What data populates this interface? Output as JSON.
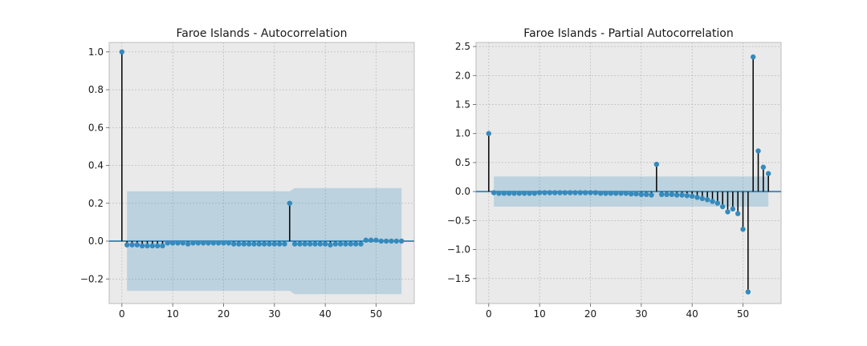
{
  "chart_data": [
    {
      "type": "stem",
      "title": "Faroe Islands - Autocorrelation",
      "xlabel": "",
      "ylabel": "",
      "xlim": [
        -2.5,
        57.5
      ],
      "ylim": [
        -0.33,
        1.05
      ],
      "xticks": [
        0,
        10,
        20,
        30,
        40,
        50
      ],
      "xtick_labels": [
        "0",
        "10",
        "20",
        "30",
        "40",
        "50"
      ],
      "yticks": [
        -0.2,
        0.0,
        0.2,
        0.4,
        0.6,
        0.8,
        1.0
      ],
      "ytick_labels": [
        "−0.2",
        "0.0",
        "0.2",
        "0.4",
        "0.6",
        "0.8",
        "1.0"
      ],
      "grid": true,
      "lags": [
        0,
        1,
        2,
        3,
        4,
        5,
        6,
        7,
        8,
        9,
        10,
        11,
        12,
        13,
        14,
        15,
        16,
        17,
        18,
        19,
        20,
        21,
        22,
        23,
        24,
        25,
        26,
        27,
        28,
        29,
        30,
        31,
        32,
        33,
        34,
        35,
        36,
        37,
        38,
        39,
        40,
        41,
        42,
        43,
        44,
        45,
        46,
        47,
        48,
        49,
        50,
        51,
        52,
        53,
        54,
        55
      ],
      "values": [
        1.0,
        -0.02,
        -0.02,
        -0.02,
        -0.025,
        -0.025,
        -0.025,
        -0.025,
        -0.025,
        -0.01,
        -0.01,
        -0.01,
        -0.01,
        -0.015,
        -0.01,
        -0.01,
        -0.01,
        -0.01,
        -0.01,
        -0.01,
        -0.01,
        -0.01,
        -0.015,
        -0.015,
        -0.015,
        -0.015,
        -0.015,
        -0.015,
        -0.015,
        -0.015,
        -0.015,
        -0.015,
        -0.015,
        0.2,
        -0.015,
        -0.015,
        -0.015,
        -0.015,
        -0.015,
        -0.015,
        -0.015,
        -0.02,
        -0.015,
        -0.015,
        -0.015,
        -0.015,
        -0.015,
        -0.015,
        0.005,
        0.005,
        0.005,
        0.0,
        0.0,
        0.0,
        0.0,
        0.0
      ],
      "confidence_band": {
        "lags": [
          1,
          33,
          34,
          55
        ],
        "upper": [
          0.263,
          0.263,
          0.28,
          0.28
        ],
        "lower": [
          -0.263,
          -0.263,
          -0.28,
          -0.28
        ]
      },
      "colors": {
        "marker": "#348abd",
        "stem": "#000000",
        "baseline": "#348abd",
        "band": "#348abd",
        "background": "#eaeaea"
      }
    },
    {
      "type": "stem",
      "title": "Faroe Islands - Partial Autocorrelation",
      "xlabel": "",
      "ylabel": "",
      "xlim": [
        -2.5,
        57.5
      ],
      "ylim": [
        -1.93,
        2.57
      ],
      "xticks": [
        0,
        10,
        20,
        30,
        40,
        50
      ],
      "xtick_labels": [
        "0",
        "10",
        "20",
        "30",
        "40",
        "50"
      ],
      "yticks": [
        -1.5,
        -1.0,
        -0.5,
        0.0,
        0.5,
        1.0,
        1.5,
        2.0,
        2.5
      ],
      "ytick_labels": [
        "−1.5",
        "−1.0",
        "−0.5",
        "0.0",
        "0.5",
        "1.0",
        "1.5",
        "2.0",
        "2.5"
      ],
      "grid": true,
      "lags": [
        0,
        1,
        2,
        3,
        4,
        5,
        6,
        7,
        8,
        9,
        10,
        11,
        12,
        13,
        14,
        15,
        16,
        17,
        18,
        19,
        20,
        21,
        22,
        23,
        24,
        25,
        26,
        27,
        28,
        29,
        30,
        31,
        32,
        33,
        34,
        35,
        36,
        37,
        38,
        39,
        40,
        41,
        42,
        43,
        44,
        45,
        46,
        47,
        48,
        49,
        50,
        51,
        52,
        53,
        54,
        55
      ],
      "values": [
        1.0,
        -0.02,
        -0.03,
        -0.03,
        -0.03,
        -0.03,
        -0.03,
        -0.03,
        -0.03,
        -0.03,
        -0.02,
        -0.02,
        -0.02,
        -0.02,
        -0.02,
        -0.02,
        -0.02,
        -0.02,
        -0.02,
        -0.02,
        -0.02,
        -0.02,
        -0.03,
        -0.03,
        -0.03,
        -0.03,
        -0.03,
        -0.03,
        -0.04,
        -0.04,
        -0.05,
        -0.05,
        -0.06,
        0.47,
        -0.05,
        -0.05,
        -0.05,
        -0.06,
        -0.06,
        -0.07,
        -0.08,
        -0.1,
        -0.12,
        -0.14,
        -0.17,
        -0.2,
        -0.26,
        -0.35,
        -0.3,
        -0.38,
        -0.65,
        -1.73,
        2.32,
        0.7,
        0.42,
        0.31
      ],
      "confidence_band": {
        "lags": [
          1,
          55
        ],
        "upper": [
          0.26,
          0.26
        ],
        "lower": [
          -0.26,
          -0.26
        ]
      },
      "colors": {
        "marker": "#348abd",
        "stem": "#000000",
        "baseline": "#348abd",
        "band": "#348abd",
        "background": "#eaeaea"
      }
    }
  ]
}
